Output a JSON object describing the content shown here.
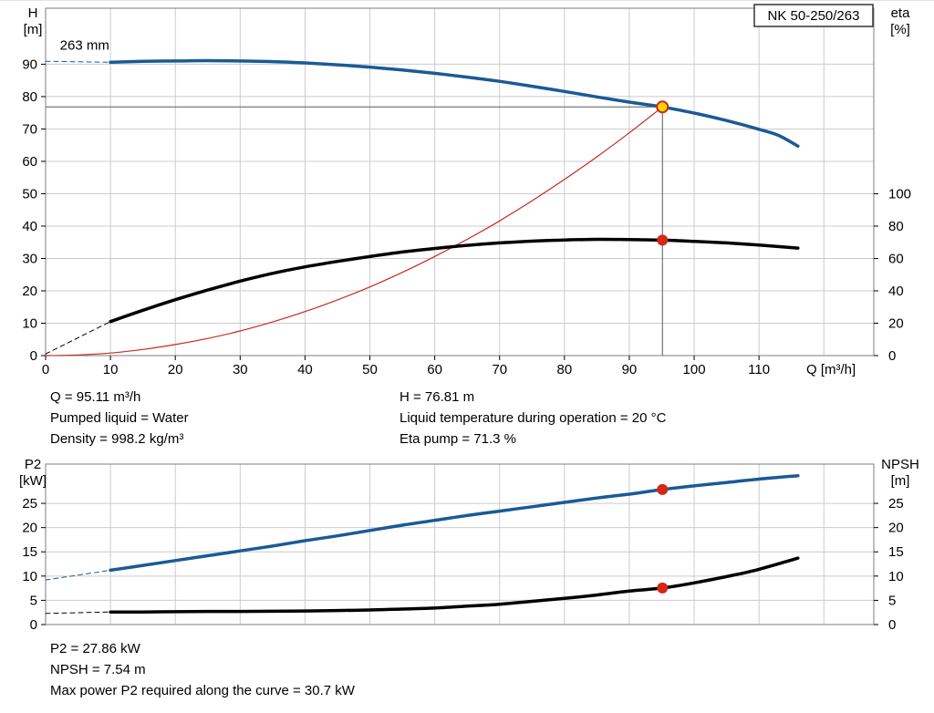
{
  "pump_model": "NK 50-250/263",
  "info_top": {
    "left": [
      "Q = 95.11 m³/h",
      "Pumped liquid = Water",
      "Density = 998.2 kg/m³"
    ],
    "right": [
      "H = 76.81 m",
      "Liquid temperature during operation = 20 °C",
      "Eta pump = 71.3 %"
    ]
  },
  "info_bottom": [
    "P2 = 27.86 kW",
    "NPSH = 7.54 m",
    "Max power P2 required along the curve = 30.7 kW"
  ],
  "colors": {
    "curve_blue": "#1a5a96",
    "curve_black": "#000000",
    "system_red": "#c9291e",
    "duty_yellow": "#ffd800",
    "marker_red": "#e02413",
    "reference_gray": "#5a5a5a",
    "grid_gray": "#cccccc"
  },
  "chart_data": [
    {
      "type": "line",
      "name": "qh-eta-chart",
      "title": "NK 50-250/263",
      "x_axis": {
        "label": "Q [m³/h]",
        "min": 0,
        "max": 127.7,
        "ticks": [
          0,
          10,
          20,
          30,
          40,
          50,
          60,
          70,
          80,
          90,
          100,
          110
        ],
        "grid": [
          10,
          20,
          30,
          40,
          50,
          60,
          70,
          80,
          90,
          100,
          110,
          120
        ]
      },
      "y_left": {
        "label": [
          "H",
          "[m]"
        ],
        "min": 0,
        "max": 107.3,
        "ticks": [
          0,
          10,
          20,
          30,
          40,
          50,
          60,
          70,
          80,
          90
        ],
        "grid": [
          10,
          20,
          30,
          40,
          50,
          60,
          70,
          80,
          90
        ]
      },
      "y_right": {
        "label": [
          "eta",
          "[%]"
        ],
        "min": 0,
        "max": 214.6,
        "ticks": [
          0,
          20,
          40,
          60,
          80,
          100
        ]
      },
      "annotations": [
        {
          "text": "263 mm",
          "q": 2.2,
          "v": 94.5
        }
      ],
      "reference_lines": [
        {
          "name": "duty-flow-line",
          "orient": "v",
          "x": 95.11,
          "from": 0,
          "to": 76.81,
          "color": "#5a5a5a"
        },
        {
          "name": "duty-head-line",
          "orient": "h",
          "y": 76.81,
          "from": 0,
          "to": 95.11,
          "color": "#5a5a5a"
        }
      ],
      "series": [
        {
          "name": "system-curve",
          "axis": "left",
          "color": "#c9291e",
          "width": 1.2,
          "points": [
            [
              0,
              0
            ],
            [
              5,
              0.2
            ],
            [
              10,
              0.8
            ],
            [
              15,
              1.9
            ],
            [
              20,
              3.4
            ],
            [
              25,
              5.3
            ],
            [
              30,
              7.6
            ],
            [
              35,
              10.4
            ],
            [
              40,
              13.6
            ],
            [
              45,
              17.2
            ],
            [
              50,
              21.2
            ],
            [
              55,
              25.7
            ],
            [
              60,
              30.6
            ],
            [
              65,
              35.9
            ],
            [
              70,
              41.6
            ],
            [
              75,
              47.8
            ],
            [
              80,
              54.4
            ],
            [
              85,
              61.4
            ],
            [
              90,
              68.8
            ],
            [
              95.11,
              76.81
            ]
          ]
        },
        {
          "name": "head-curve-extrapolated",
          "axis": "left",
          "color": "#1a5a96",
          "width": 1,
          "dash": "5 4",
          "points": [
            [
              0,
              90.9
            ],
            [
              10,
              90.6
            ]
          ]
        },
        {
          "name": "head-curve",
          "axis": "left",
          "color": "#1a5a96",
          "width": 3.5,
          "points": [
            [
              10,
              90.6
            ],
            [
              15,
              90.9
            ],
            [
              20,
              91.0
            ],
            [
              25,
              91.1
            ],
            [
              30,
              91.0
            ],
            [
              35,
              90.8
            ],
            [
              40,
              90.4
            ],
            [
              45,
              89.8
            ],
            [
              50,
              89.1
            ],
            [
              55,
              88.2
            ],
            [
              60,
              87.2
            ],
            [
              65,
              86.0
            ],
            [
              70,
              84.7
            ],
            [
              75,
              83.2
            ],
            [
              80,
              81.6
            ],
            [
              85,
              79.9
            ],
            [
              90,
              78.3
            ],
            [
              95.11,
              76.81
            ],
            [
              100,
              74.9
            ],
            [
              105,
              72.6
            ],
            [
              110,
              69.9
            ],
            [
              113,
              68.0
            ],
            [
              116,
              64.7
            ]
          ]
        },
        {
          "name": "eta-curve-extrapolated",
          "axis": "right",
          "color": "#000000",
          "width": 1,
          "dash": "5 4",
          "points": [
            [
              0,
              1
            ],
            [
              10,
              21
            ]
          ]
        },
        {
          "name": "eta-curve",
          "axis": "right",
          "color": "#000000",
          "width": 3.5,
          "points": [
            [
              10,
              21
            ],
            [
              15,
              28
            ],
            [
              20,
              34.5
            ],
            [
              25,
              40.5
            ],
            [
              30,
              46
            ],
            [
              35,
              50.8
            ],
            [
              40,
              54.8
            ],
            [
              45,
              58.2
            ],
            [
              50,
              61.2
            ],
            [
              55,
              64
            ],
            [
              60,
              66.2
            ],
            [
              65,
              68.1
            ],
            [
              70,
              69.6
            ],
            [
              75,
              70.7
            ],
            [
              80,
              71.4
            ],
            [
              85,
              71.8
            ],
            [
              90,
              71.7
            ],
            [
              95.11,
              71.3
            ],
            [
              100,
              70.6
            ],
            [
              105,
              69.6
            ],
            [
              110,
              68.3
            ],
            [
              116,
              66.4
            ]
          ]
        }
      ],
      "markers": [
        {
          "name": "duty-point-marker",
          "axis": "left",
          "q": 95.11,
          "v": 76.81,
          "r": 6,
          "fill": "#ffd800",
          "stroke": "#c9291e"
        },
        {
          "name": "eta-point-marker",
          "axis": "right",
          "q": 95.11,
          "v": 71.3,
          "r": 5,
          "fill": "#e02413",
          "stroke": "#c9291e"
        }
      ]
    },
    {
      "type": "line",
      "name": "p2-npsh-chart",
      "x_axis": {
        "label": "",
        "min": 0,
        "max": 127.7,
        "ticks": [],
        "grid": [
          10,
          20,
          30,
          40,
          50,
          60,
          70,
          80,
          90,
          100,
          110,
          120
        ]
      },
      "y_left": {
        "label": [
          "P2",
          "[kW]"
        ],
        "min": 0,
        "max": 33.1,
        "ticks": [
          0,
          5,
          10,
          15,
          20,
          25
        ],
        "grid": [
          5,
          10,
          15,
          20,
          25
        ]
      },
      "y_right": {
        "label": [
          "NPSH",
          "[m]"
        ],
        "min": 0,
        "max": 33.1,
        "ticks": [
          0,
          5,
          10,
          15,
          20,
          25
        ]
      },
      "series": [
        {
          "name": "p2-curve-extrapolated",
          "axis": "left",
          "color": "#1a5a96",
          "width": 1,
          "dash": "5 4",
          "points": [
            [
              0,
              9.2
            ],
            [
              10,
              11.2
            ]
          ]
        },
        {
          "name": "p2-curve",
          "axis": "left",
          "color": "#1a5a96",
          "width": 3.5,
          "points": [
            [
              10,
              11.2
            ],
            [
              15,
              12.2
            ],
            [
              20,
              13.2
            ],
            [
              25,
              14.2
            ],
            [
              30,
              15.2
            ],
            [
              35,
              16.2
            ],
            [
              40,
              17.3
            ],
            [
              45,
              18.3
            ],
            [
              50,
              19.4
            ],
            [
              55,
              20.5
            ],
            [
              60,
              21.5
            ],
            [
              65,
              22.5
            ],
            [
              70,
              23.4
            ],
            [
              75,
              24.3
            ],
            [
              80,
              25.2
            ],
            [
              85,
              26.1
            ],
            [
              90,
              26.9
            ],
            [
              95.11,
              27.86
            ],
            [
              100,
              28.6
            ],
            [
              105,
              29.3
            ],
            [
              110,
              30.0
            ],
            [
              116,
              30.7
            ]
          ]
        },
        {
          "name": "npsh-curve-extrapolated",
          "axis": "right",
          "color": "#000000",
          "width": 1,
          "dash": "5 4",
          "points": [
            [
              0,
              2.3
            ],
            [
              10,
              2.6
            ]
          ]
        },
        {
          "name": "npsh-curve",
          "axis": "right",
          "color": "#000000",
          "width": 3.5,
          "points": [
            [
              10,
              2.6
            ],
            [
              15,
              2.6
            ],
            [
              20,
              2.65
            ],
            [
              25,
              2.7
            ],
            [
              30,
              2.7
            ],
            [
              35,
              2.75
            ],
            [
              40,
              2.8
            ],
            [
              45,
              2.9
            ],
            [
              50,
              3.0
            ],
            [
              55,
              3.2
            ],
            [
              60,
              3.4
            ],
            [
              65,
              3.8
            ],
            [
              70,
              4.2
            ],
            [
              75,
              4.8
            ],
            [
              80,
              5.4
            ],
            [
              85,
              6.1
            ],
            [
              90,
              6.9
            ],
            [
              95.11,
              7.54
            ],
            [
              100,
              8.6
            ],
            [
              105,
              9.9
            ],
            [
              110,
              11.4
            ],
            [
              116,
              13.7
            ]
          ]
        }
      ],
      "markers": [
        {
          "name": "p2-point-marker",
          "axis": "left",
          "q": 95.11,
          "v": 27.86,
          "r": 5,
          "fill": "#e02413",
          "stroke": "#c9291e"
        },
        {
          "name": "npsh-point-marker",
          "axis": "right",
          "q": 95.11,
          "v": 7.54,
          "r": 5,
          "fill": "#e02413",
          "stroke": "#c9291e"
        }
      ]
    }
  ]
}
